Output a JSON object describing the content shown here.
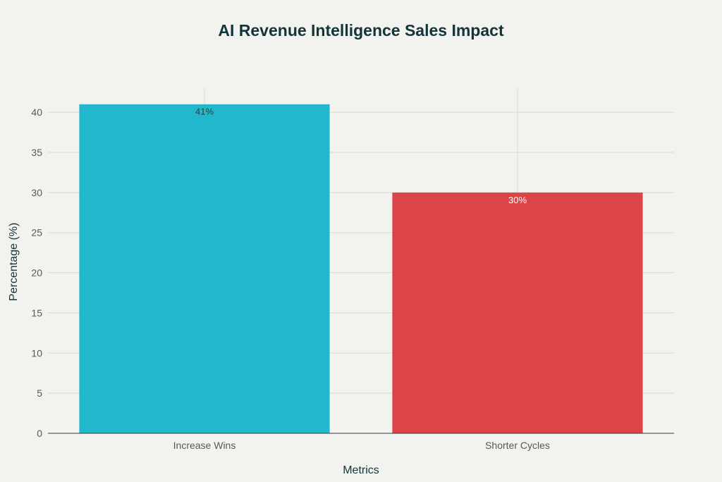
{
  "chart_data": {
    "type": "bar",
    "title": "AI Revenue Intelligence Sales Impact",
    "xlabel": "Metrics",
    "ylabel": "Percentage (%)",
    "categories": [
      "Increase Wins",
      "Shorter Cycles"
    ],
    "values": [
      41,
      30
    ],
    "data_labels": [
      "41%",
      "30%"
    ],
    "colors": [
      "#21b8cd",
      "#db4548"
    ],
    "label_colors": [
      "#3a3a3a",
      "#ffffff"
    ],
    "ylim": [
      0,
      43
    ],
    "yticks": [
      0,
      5,
      10,
      15,
      20,
      25,
      30,
      35,
      40
    ],
    "grid": true,
    "legend": "none"
  }
}
